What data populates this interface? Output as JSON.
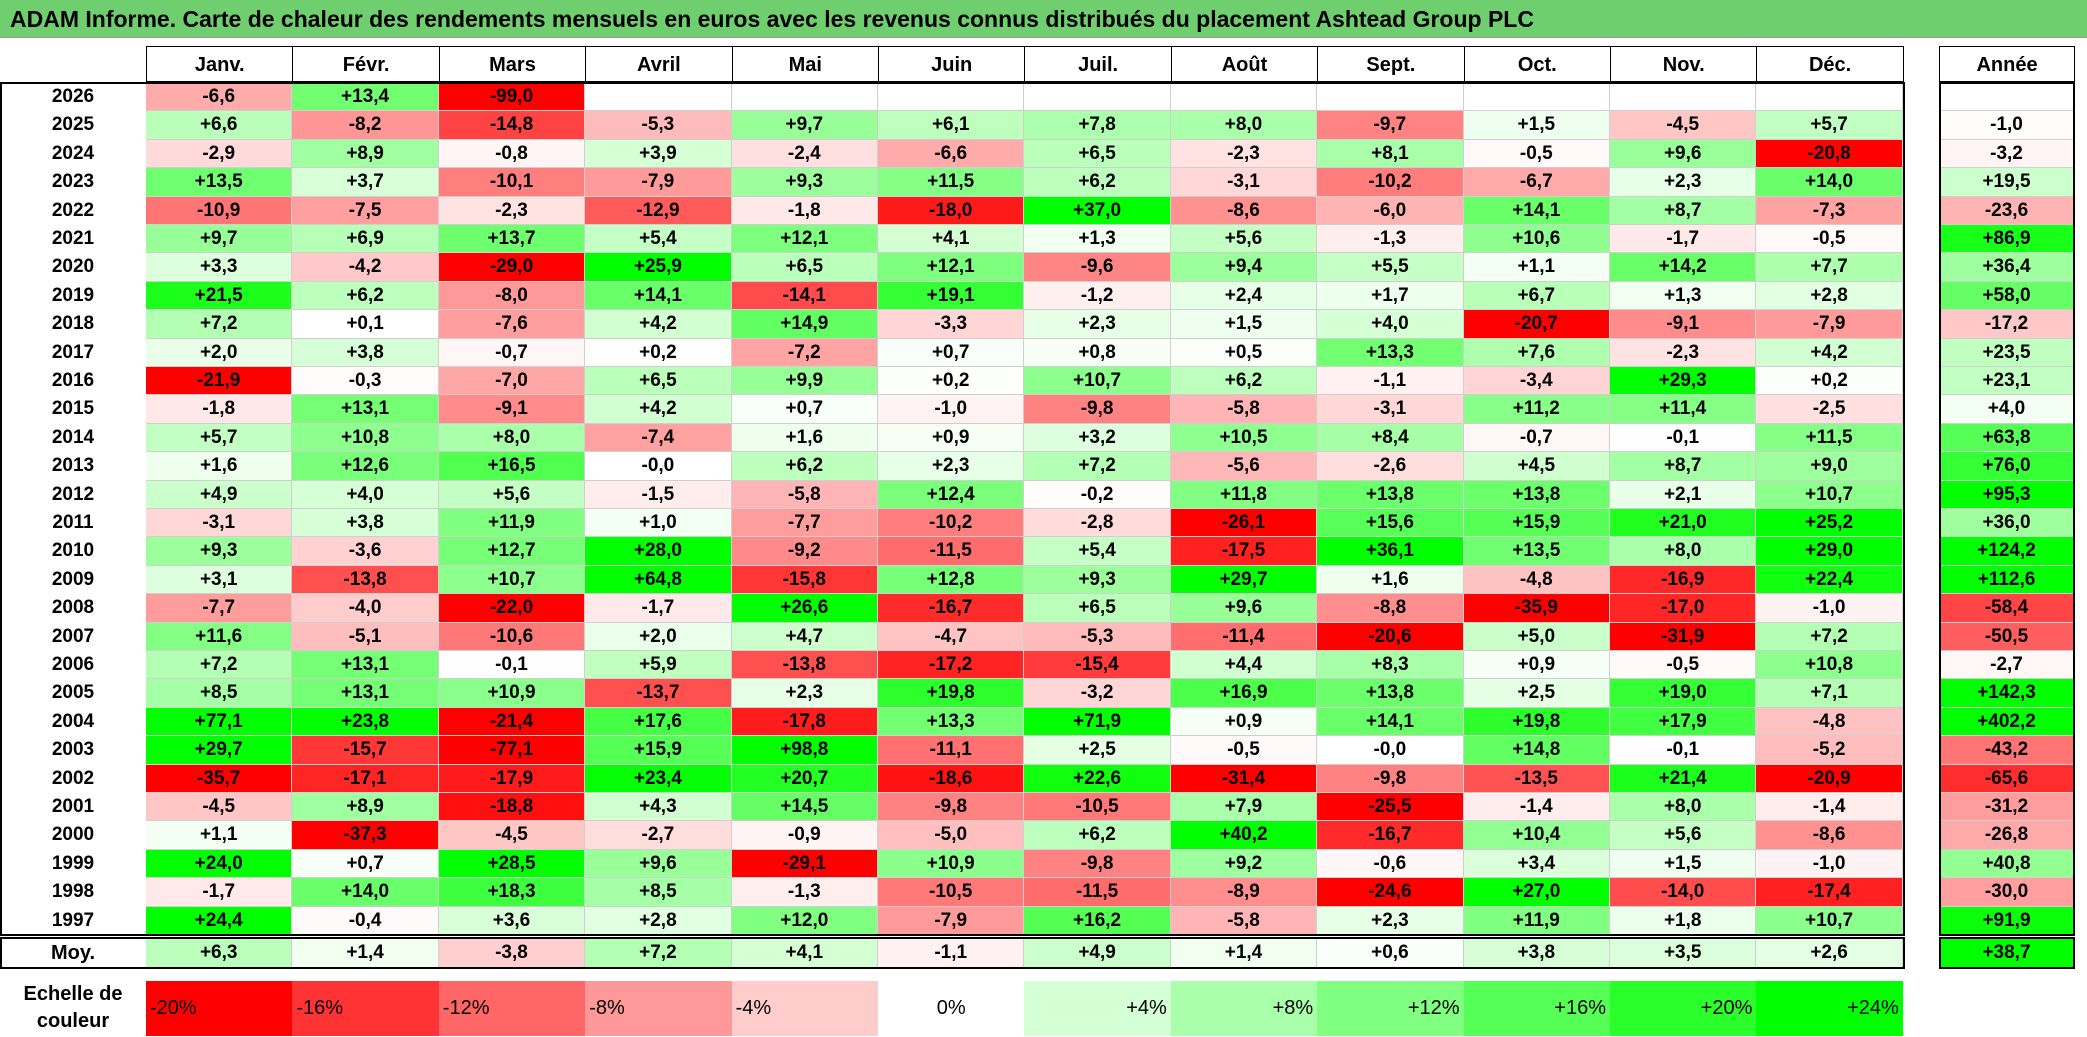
{
  "title": "ADAM Informe. Carte de chaleur des rendements mensuels en euros avec les revenus connus distribués du placement Ashtead Group PLC",
  "months": [
    "Janv.",
    "Févr.",
    "Mars",
    "Avril",
    "Mai",
    "Juin",
    "Juil.",
    "Août",
    "Sept.",
    "Oct.",
    "Nov.",
    "Déc."
  ],
  "annual_header": "Année",
  "average_label": "Moy.",
  "scale_label": "Echelle de couleur",
  "scale_labels": [
    "-20%",
    "-16%",
    "-12%",
    "-8%",
    "-4%",
    "0%",
    "+4%",
    "+8%",
    "+12%",
    "+16%",
    "+20%",
    "+24%"
  ],
  "colors": {
    "title_bar": "#6fcf6f",
    "positive": "#00ff00",
    "negative": "#ff0000",
    "neutral": "#ffffff"
  },
  "chart_data": {
    "type": "heatmap",
    "title": "ADAM Informe. Carte de chaleur des rendements mensuels en euros avec les revenus connus distribués du placement Ashtead Group PLC",
    "x_categories": [
      "Janv.",
      "Févr.",
      "Mars",
      "Avril",
      "Mai",
      "Juin",
      "Juil.",
      "Août",
      "Sept.",
      "Oct.",
      "Nov.",
      "Déc.",
      "Année"
    ],
    "rows": [
      {
        "year": "2026",
        "values": [
          "-6,6",
          "+13,4",
          "-99,0",
          "",
          "",
          "",
          "",
          "",
          "",
          "",
          "",
          ""
        ],
        "annual": ""
      },
      {
        "year": "2025",
        "values": [
          "+6,6",
          "-8,2",
          "-14,8",
          "-5,3",
          "+9,7",
          "+6,1",
          "+7,8",
          "+8,0",
          "-9,7",
          "+1,5",
          "-4,5",
          "+5,7"
        ],
        "annual": "-1,0"
      },
      {
        "year": "2024",
        "values": [
          "-2,9",
          "+8,9",
          "-0,8",
          "+3,9",
          "-2,4",
          "-6,6",
          "+6,5",
          "-2,3",
          "+8,1",
          "-0,5",
          "+9,6",
          "-20,8"
        ],
        "annual": "-3,2"
      },
      {
        "year": "2023",
        "values": [
          "+13,5",
          "+3,7",
          "-10,1",
          "-7,9",
          "+9,3",
          "+11,5",
          "+6,2",
          "-3,1",
          "-10,2",
          "-6,7",
          "+2,3",
          "+14,0"
        ],
        "annual": "+19,5"
      },
      {
        "year": "2022",
        "values": [
          "-10,9",
          "-7,5",
          "-2,3",
          "-12,9",
          "-1,8",
          "-18,0",
          "+37,0",
          "-8,6",
          "-6,0",
          "+14,1",
          "+8,7",
          "-7,3"
        ],
        "annual": "-23,6"
      },
      {
        "year": "2021",
        "values": [
          "+9,7",
          "+6,9",
          "+13,7",
          "+5,4",
          "+12,1",
          "+4,1",
          "+1,3",
          "+5,6",
          "-1,3",
          "+10,6",
          "-1,7",
          "-0,5"
        ],
        "annual": "+86,9"
      },
      {
        "year": "2020",
        "values": [
          "+3,3",
          "-4,2",
          "-29,0",
          "+25,9",
          "+6,5",
          "+12,1",
          "-9,6",
          "+9,4",
          "+5,5",
          "+1,1",
          "+14,2",
          "+7,7"
        ],
        "annual": "+36,4"
      },
      {
        "year": "2019",
        "values": [
          "+21,5",
          "+6,2",
          "-8,0",
          "+14,1",
          "-14,1",
          "+19,1",
          "-1,2",
          "+2,4",
          "+1,7",
          "+6,7",
          "+1,3",
          "+2,8"
        ],
        "annual": "+58,0"
      },
      {
        "year": "2018",
        "values": [
          "+7,2",
          "+0,1",
          "-7,6",
          "+4,2",
          "+14,9",
          "-3,3",
          "+2,3",
          "+1,5",
          "+4,0",
          "-20,7",
          "-9,1",
          "-7,9"
        ],
        "annual": "-17,2"
      },
      {
        "year": "2017",
        "values": [
          "+2,0",
          "+3,8",
          "-0,7",
          "+0,2",
          "-7,2",
          "+0,7",
          "+0,8",
          "+0,5",
          "+13,3",
          "+7,6",
          "-2,3",
          "+4,2"
        ],
        "annual": "+23,5"
      },
      {
        "year": "2016",
        "values": [
          "-21,9",
          "-0,3",
          "-7,0",
          "+6,5",
          "+9,9",
          "+0,2",
          "+10,7",
          "+6,2",
          "-1,1",
          "-3,4",
          "+29,3",
          "+0,2"
        ],
        "annual": "+23,1"
      },
      {
        "year": "2015",
        "values": [
          "-1,8",
          "+13,1",
          "-9,1",
          "+4,2",
          "+0,7",
          "-1,0",
          "-9,8",
          "-5,8",
          "-3,1",
          "+11,2",
          "+11,4",
          "-2,5"
        ],
        "annual": "+4,0"
      },
      {
        "year": "2014",
        "values": [
          "+5,7",
          "+10,8",
          "+8,0",
          "-7,4",
          "+1,6",
          "+0,9",
          "+3,2",
          "+10,5",
          "+8,4",
          "-0,7",
          "-0,1",
          "+11,5"
        ],
        "annual": "+63,8"
      },
      {
        "year": "2013",
        "values": [
          "+1,6",
          "+12,6",
          "+16,5",
          "-0,0",
          "+6,2",
          "+2,3",
          "+7,2",
          "-5,6",
          "-2,6",
          "+4,5",
          "+8,7",
          "+9,0"
        ],
        "annual": "+76,0"
      },
      {
        "year": "2012",
        "values": [
          "+4,9",
          "+4,0",
          "+5,6",
          "-1,5",
          "-5,8",
          "+12,4",
          "-0,2",
          "+11,8",
          "+13,8",
          "+13,8",
          "+2,1",
          "+10,7"
        ],
        "annual": "+95,3"
      },
      {
        "year": "2011",
        "values": [
          "-3,1",
          "+3,8",
          "+11,9",
          "+1,0",
          "-7,7",
          "-10,2",
          "-2,8",
          "-26,1",
          "+15,6",
          "+15,9",
          "+21,0",
          "+25,2"
        ],
        "annual": "+36,0"
      },
      {
        "year": "2010",
        "values": [
          "+9,3",
          "-3,6",
          "+12,7",
          "+28,0",
          "-9,2",
          "-11,5",
          "+5,4",
          "-17,5",
          "+36,1",
          "+13,5",
          "+8,0",
          "+29,0"
        ],
        "annual": "+124,2"
      },
      {
        "year": "2009",
        "values": [
          "+3,1",
          "-13,8",
          "+10,7",
          "+64,8",
          "-15,8",
          "+12,8",
          "+9,3",
          "+29,7",
          "+1,6",
          "-4,8",
          "-16,9",
          "+22,4"
        ],
        "annual": "+112,6"
      },
      {
        "year": "2008",
        "values": [
          "-7,7",
          "-4,0",
          "-22,0",
          "-1,7",
          "+26,6",
          "-16,7",
          "+6,5",
          "+9,6",
          "-8,8",
          "-35,9",
          "-17,0",
          "-1,0"
        ],
        "annual": "-58,4"
      },
      {
        "year": "2007",
        "values": [
          "+11,6",
          "-5,1",
          "-10,6",
          "+2,0",
          "+4,7",
          "-4,7",
          "-5,3",
          "-11,4",
          "-20,6",
          "+5,0",
          "-31,9",
          "+7,2"
        ],
        "annual": "-50,5"
      },
      {
        "year": "2006",
        "values": [
          "+7,2",
          "+13,1",
          "-0,1",
          "+5,9",
          "-13,8",
          "-17,2",
          "-15,4",
          "+4,4",
          "+8,3",
          "+0,9",
          "-0,5",
          "+10,8"
        ],
        "annual": "-2,7"
      },
      {
        "year": "2005",
        "values": [
          "+8,5",
          "+13,1",
          "+10,9",
          "-13,7",
          "+2,3",
          "+19,8",
          "-3,2",
          "+16,9",
          "+13,8",
          "+2,5",
          "+19,0",
          "+7,1"
        ],
        "annual": "+142,3"
      },
      {
        "year": "2004",
        "values": [
          "+77,1",
          "+23,8",
          "-21,4",
          "+17,6",
          "-17,8",
          "+13,3",
          "+71,9",
          "+0,9",
          "+14,1",
          "+19,8",
          "+17,9",
          "-4,8"
        ],
        "annual": "+402,2"
      },
      {
        "year": "2003",
        "values": [
          "+29,7",
          "-15,7",
          "-77,1",
          "+15,9",
          "+98,8",
          "-11,1",
          "+2,5",
          "-0,5",
          "-0,0",
          "+14,8",
          "-0,1",
          "-5,2"
        ],
        "annual": "-43,2"
      },
      {
        "year": "2002",
        "values": [
          "-35,7",
          "-17,1",
          "-17,9",
          "+23,4",
          "+20,7",
          "-18,6",
          "+22,6",
          "-31,4",
          "-9,8",
          "-13,5",
          "+21,4",
          "-20,9"
        ],
        "annual": "-65,6"
      },
      {
        "year": "2001",
        "values": [
          "-4,5",
          "+8,9",
          "-18,8",
          "+4,3",
          "+14,5",
          "-9,8",
          "-10,5",
          "+7,9",
          "-25,5",
          "-1,4",
          "+8,0",
          "-1,4"
        ],
        "annual": "-31,2"
      },
      {
        "year": "2000",
        "values": [
          "+1,1",
          "-37,3",
          "-4,5",
          "-2,7",
          "-0,9",
          "-5,0",
          "+6,2",
          "+40,2",
          "-16,7",
          "+10,4",
          "+5,6",
          "-8,6"
        ],
        "annual": "-26,8"
      },
      {
        "year": "1999",
        "values": [
          "+24,0",
          "+0,7",
          "+28,5",
          "+9,6",
          "-29,1",
          "+10,9",
          "-9,8",
          "+9,2",
          "-0,6",
          "+3,4",
          "+1,5",
          "-1,0"
        ],
        "annual": "+40,8"
      },
      {
        "year": "1998",
        "values": [
          "-1,7",
          "+14,0",
          "+18,3",
          "+8,5",
          "-1,3",
          "-10,5",
          "-11,5",
          "-8,9",
          "-24,6",
          "+27,0",
          "-14,0",
          "-17,4"
        ],
        "annual": "-30,0"
      },
      {
        "year": "1997",
        "values": [
          "+24,4",
          "-0,4",
          "+3,6",
          "+2,8",
          "+12,0",
          "-7,9",
          "+16,2",
          "-5,8",
          "+2,3",
          "+11,9",
          "+1,8",
          "+10,7"
        ],
        "annual": "+91,9"
      }
    ],
    "average": {
      "values": [
        "+6,3",
        "+1,4",
        "-3,8",
        "+7,2",
        "+4,1",
        "-1,1",
        "+4,9",
        "+1,4",
        "+0,6",
        "+3,8",
        "+3,5",
        "+2,6"
      ],
      "annual": "+38,7"
    },
    "color_scale": {
      "min": -20,
      "max": 24,
      "step": 4,
      "negative_color": "#ff0000",
      "positive_color": "#00ff00",
      "zero_color": "#ffffff"
    }
  }
}
